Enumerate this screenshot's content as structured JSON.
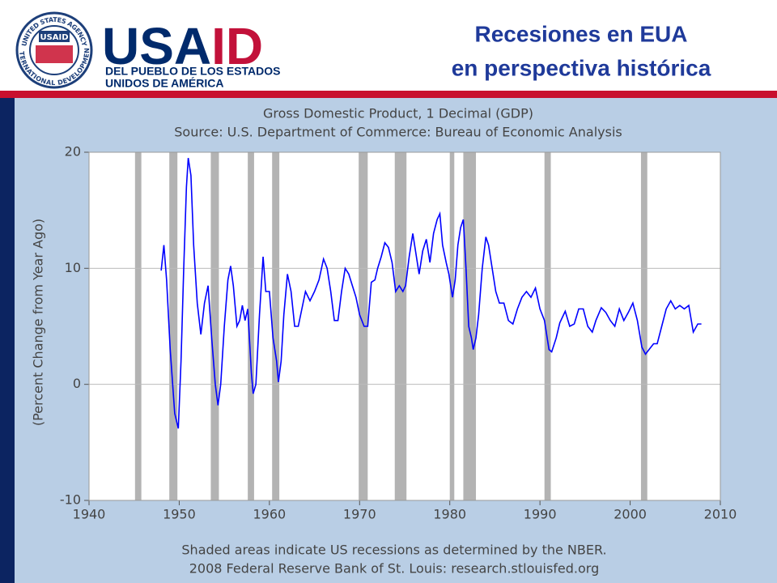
{
  "header": {
    "title_lines": [
      "Recesiones en EUA",
      "en perspectiva histórica"
    ],
    "logo_parts": [
      "USA",
      "ID"
    ],
    "logo_lines": [
      "DEL PUEBLO DE LOS ESTADOS",
      "UNIDOS DE AMÉRICA"
    ],
    "seal_top": "UNITED STATES AGENCY",
    "seal_bottom": "INTERNATIONAL DEVELOPMENT",
    "seal_center": "USAID"
  },
  "chart_data": {
    "type": "line",
    "title": "Gross Domestic Product, 1 Decimal (GDP)",
    "subtitle": "Source: U.S. Department of Commerce: Bureau of Economic Analysis",
    "y_label": "(Percent Change from Year Ago)",
    "notes": [
      "Shaded areas indicate US recessions as determined by the NBER.",
      "2008 Federal Reserve Bank of St. Louis: research.stlouisfed.org"
    ],
    "xlim": [
      1940,
      2010
    ],
    "xticks": [
      1940,
      1950,
      1960,
      1970,
      1980,
      1990,
      2000,
      2010
    ],
    "ylim": [
      -10,
      20
    ],
    "yticks": [
      -10,
      0,
      10,
      20
    ],
    "grid": true,
    "recessions": [
      [
        1945.1,
        1945.8
      ],
      [
        1948.9,
        1949.8
      ],
      [
        1953.5,
        1954.4
      ],
      [
        1957.6,
        1958.3
      ],
      [
        1960.3,
        1961.1
      ],
      [
        1969.9,
        1970.9
      ],
      [
        1973.9,
        1975.2
      ],
      [
        1980.0,
        1980.5
      ],
      [
        1981.5,
        1982.9
      ],
      [
        1990.5,
        1991.2
      ],
      [
        2001.2,
        2001.9
      ]
    ],
    "recession_color": "#b3b3b3",
    "x": [
      1948.0,
      1948.3,
      1948.6,
      1949.0,
      1949.5,
      1949.9,
      1950.2,
      1950.5,
      1950.8,
      1951.0,
      1951.3,
      1951.6,
      1952.0,
      1952.4,
      1952.8,
      1953.2,
      1953.6,
      1954.0,
      1954.3,
      1954.6,
      1955.0,
      1955.4,
      1955.7,
      1956.0,
      1956.4,
      1956.7,
      1957.0,
      1957.3,
      1957.6,
      1958.0,
      1958.2,
      1958.5,
      1958.9,
      1959.3,
      1959.6,
      1960.0,
      1960.4,
      1960.8,
      1961.0,
      1961.3,
      1961.6,
      1962.0,
      1962.4,
      1962.8,
      1963.2,
      1963.6,
      1964.0,
      1964.5,
      1965.0,
      1965.5,
      1966.0,
      1966.4,
      1966.8,
      1967.2,
      1967.6,
      1968.0,
      1968.4,
      1968.8,
      1969.2,
      1969.6,
      1970.0,
      1970.5,
      1970.9,
      1971.3,
      1971.7,
      1972.0,
      1972.4,
      1972.8,
      1973.2,
      1973.6,
      1974.0,
      1974.4,
      1974.8,
      1975.1,
      1975.5,
      1975.9,
      1976.2,
      1976.6,
      1977.0,
      1977.4,
      1977.8,
      1978.2,
      1978.6,
      1978.9,
      1979.2,
      1979.6,
      1979.9,
      1980.3,
      1980.6,
      1980.9,
      1981.2,
      1981.5,
      1981.8,
      1982.1,
      1982.4,
      1982.6,
      1982.9,
      1983.2,
      1983.6,
      1984.0,
      1984.3,
      1984.7,
      1985.1,
      1985.5,
      1986.0,
      1986.5,
      1987.0,
      1987.5,
      1988.0,
      1988.5,
      1989.0,
      1989.5,
      1990.0,
      1990.5,
      1991.0,
      1991.3,
      1991.8,
      1992.2,
      1992.8,
      1993.3,
      1993.8,
      1994.3,
      1994.8,
      1995.3,
      1995.8,
      1996.2,
      1996.8,
      1997.3,
      1997.8,
      1998.3,
      1998.8,
      1999.3,
      1999.8,
      2000.3,
      2000.8,
      2001.3,
      2001.7,
      2002.1,
      2002.6,
      2003.0,
      2003.5,
      2004.0,
      2004.5,
      2005.0,
      2005.5,
      2006.0,
      2006.5,
      2007.0,
      2007.5,
      2007.9
    ],
    "series": [
      {
        "name": "GDP",
        "color": "#0000ff",
        "values": [
          9.8,
          12.0,
          9,
          3,
          -2.5,
          -3.8,
          2,
          10,
          17,
          19.5,
          18,
          12,
          7,
          4.3,
          7,
          8.5,
          4,
          0,
          -1.8,
          0,
          5,
          9,
          10.2,
          8.5,
          5,
          5.5,
          6.8,
          5.5,
          6.5,
          1,
          -0.8,
          0,
          6,
          11,
          8,
          8,
          4,
          2,
          0.2,
          2,
          6,
          9.5,
          8,
          5,
          5,
          6.5,
          8,
          7.2,
          8,
          9,
          10.8,
          10,
          8,
          5.5,
          5.5,
          8,
          10,
          9.5,
          8.5,
          7.5,
          6,
          5,
          5,
          8.8,
          9,
          10,
          11,
          12.2,
          11.8,
          10.5,
          8,
          8.5,
          8,
          8.5,
          11,
          13,
          11.5,
          9.5,
          11.5,
          12.5,
          10.5,
          13,
          14.2,
          14.7,
          12,
          10.5,
          9.5,
          7.5,
          9,
          12,
          13.5,
          14.2,
          10,
          5,
          4,
          3,
          4,
          6,
          10,
          12.7,
          12,
          10,
          8,
          7,
          7,
          5.5,
          5.2,
          6.5,
          7.5,
          8,
          7.5,
          8.3,
          6.5,
          5.5,
          3,
          2.8,
          4,
          5.3,
          6.3,
          5,
          5.2,
          6.5,
          6.5,
          5,
          4.5,
          5.5,
          6.6,
          6.2,
          5.5,
          5,
          6.5,
          5.5,
          6.2,
          7,
          5.5,
          3.2,
          2.6,
          3,
          3.5,
          3.5,
          5,
          6.5,
          7.2,
          6.5,
          6.8,
          6.5,
          6.8,
          4.5,
          5.2,
          5.2
        ]
      }
    ]
  }
}
